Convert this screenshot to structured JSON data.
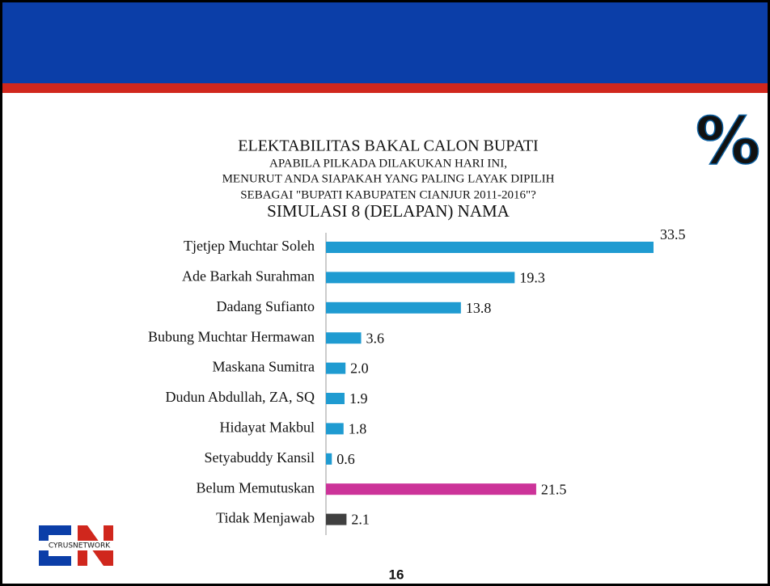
{
  "chart_data": {
    "type": "bar",
    "orientation": "horizontal",
    "title": "ELEKTABILITAS BAKAL CALON BUPATI",
    "subtitle_lines": [
      "APABILA PILKADA DILAKUKAN HARI INI,",
      "MENURUT ANDA SIAPAKAH YANG PALING LAYAK DIPILIH",
      "SEBAGAI \"BUPATI KABUPATEN CIANJUR 2011-2016\"?"
    ],
    "subtitle2": "SIMULASI 8 (DELAPAN) NAMA",
    "categories": [
      "Tjetjep Muchtar Soleh",
      "Ade Barkah Surahman",
      "Dadang Sufianto",
      "Bubung Muchtar Hermawan",
      "Maskana Sumitra",
      "Dudun Abdullah, ZA, SQ",
      "Hidayat Makbul",
      "Setyabuddy Kansil",
      "Belum Memutuskan",
      "Tidak Menjawab"
    ],
    "values": [
      33.5,
      19.3,
      13.8,
      3.6,
      2,
      1.9,
      1.8,
      0.6,
      21.5,
      2.1
    ],
    "value_labels": [
      "33.5",
      "19.3",
      "13.8",
      "3.6",
      "2.0",
      "1.9",
      "1.8",
      "0.6",
      "21.5",
      "2.1"
    ],
    "colors": [
      "#1f9bd1",
      "#1f9bd1",
      "#1f9bd1",
      "#1f9bd1",
      "#1f9bd1",
      "#1f9bd1",
      "#1f9bd1",
      "#1f9bd1",
      "#cc3399",
      "#404040"
    ]
  },
  "icon_text": "%",
  "logo_text": "CYRUSNETWORK",
  "page_number": "16"
}
